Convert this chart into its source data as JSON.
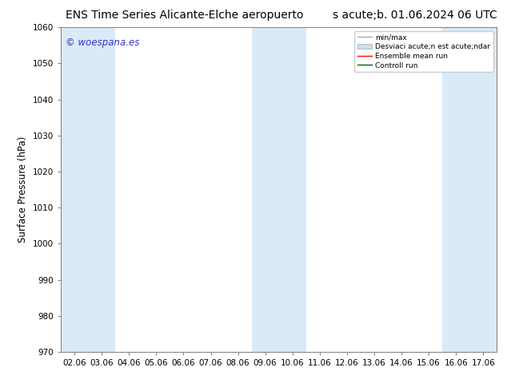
{
  "title_left": "ENS Time Series Alicante-Elche aeropuerto",
  "title_right": "s acute;b. 01.06.2024 06 UTC",
  "ylabel": "Surface Pressure (hPa)",
  "watermark": "© woespana.es",
  "ylim": [
    970,
    1060
  ],
  "yticks": [
    970,
    980,
    990,
    1000,
    1010,
    1020,
    1030,
    1040,
    1050,
    1060
  ],
  "xtick_labels": [
    "02.06",
    "03.06",
    "04.06",
    "05.06",
    "06.06",
    "07.06",
    "08.06",
    "09.06",
    "10.06",
    "11.06",
    "12.06",
    "13.06",
    "14.06",
    "15.06",
    "16.06",
    "17.06"
  ],
  "bg_color": "#ffffff",
  "fill_color": "#daeaf7",
  "shaded_ranges": [
    [
      0,
      1
    ],
    [
      7,
      8
    ],
    [
      14,
      15
    ]
  ],
  "legend_labels": [
    "min/max",
    "Desviaci acute;n est acute;ndar",
    "Ensemble mean run",
    "Controll run"
  ],
  "legend_line_color": "#aaaaaa",
  "legend_patch_color": "#c8dff0",
  "legend_red": "#ff0000",
  "legend_green": "#006600",
  "title_fontsize": 10,
  "tick_fontsize": 7.5,
  "ylabel_fontsize": 8.5,
  "watermark_color": "#3333cc",
  "watermark_fontsize": 8.5,
  "spine_color": "#888888",
  "no_grid": true
}
